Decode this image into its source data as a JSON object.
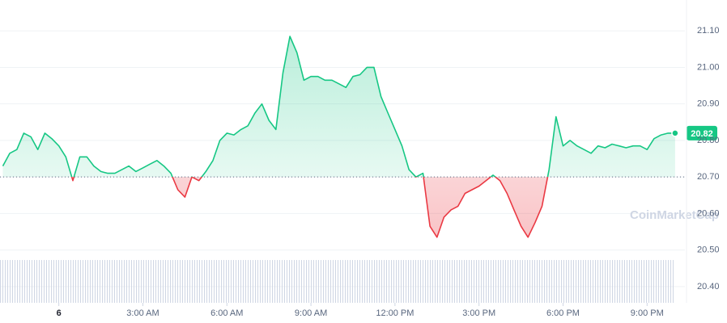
{
  "chart_data": {
    "type": "line",
    "watermark": "CoinMarketCap",
    "current_price": 20.82,
    "baseline": 20.7,
    "up_color": "#16c784",
    "down_color": "#ea3943",
    "grid": true,
    "xlim": [
      -2.1,
      22.35
    ],
    "xticks": [
      {
        "value": 0,
        "label": "6"
      },
      {
        "value": 3,
        "label": "3:00 AM"
      },
      {
        "value": 6,
        "label": "6:00 AM"
      },
      {
        "value": 9,
        "label": "9:00 AM"
      },
      {
        "value": 12,
        "label": "12:00 PM"
      },
      {
        "value": 15,
        "label": "3:00 PM"
      },
      {
        "value": 18,
        "label": "6:00 PM"
      },
      {
        "value": 21,
        "label": "9:00 PM"
      }
    ],
    "ylim": [
      20.36,
      21.18
    ],
    "yticks": [
      {
        "value": 20.4,
        "label": "20.40"
      },
      {
        "value": 20.5,
        "label": "20.50"
      },
      {
        "value": 20.6,
        "label": "20.60"
      },
      {
        "value": 20.7,
        "label": "20.70"
      },
      {
        "value": 20.8,
        "label": "20.80"
      },
      {
        "value": 20.9,
        "label": "20.90"
      },
      {
        "value": 21.0,
        "label": "21.00"
      },
      {
        "value": 21.1,
        "label": "21.10"
      }
    ],
    "x": [
      -2,
      -1.75,
      -1.5,
      -1.25,
      -1,
      -0.75,
      -0.5,
      -0.25,
      0,
      0.25,
      0.5,
      0.75,
      1,
      1.25,
      1.5,
      1.75,
      2,
      2.25,
      2.5,
      2.75,
      3,
      3.25,
      3.5,
      3.75,
      4,
      4.25,
      4.5,
      4.75,
      5,
      5.25,
      5.5,
      5.75,
      6,
      6.25,
      6.5,
      6.75,
      7,
      7.25,
      7.5,
      7.75,
      8,
      8.25,
      8.5,
      8.75,
      9,
      9.25,
      9.5,
      9.75,
      10,
      10.25,
      10.5,
      10.75,
      11,
      11.25,
      11.5,
      11.75,
      12,
      12.25,
      12.5,
      12.75,
      13,
      13.25,
      13.5,
      13.75,
      14,
      14.25,
      14.5,
      14.75,
      15,
      15.25,
      15.5,
      15.75,
      16,
      16.25,
      16.5,
      16.75,
      17,
      17.25,
      17.5,
      17.75,
      18,
      18.25,
      18.5,
      18.75,
      19,
      19.25,
      19.5,
      19.75,
      20,
      20.25,
      20.5,
      20.75,
      21,
      21.25,
      21.5,
      21.75,
      22
    ],
    "values": [
      20.73,
      20.765,
      20.775,
      20.82,
      20.81,
      20.775,
      20.82,
      20.805,
      20.785,
      20.755,
      20.69,
      20.755,
      20.755,
      20.73,
      20.715,
      20.71,
      20.71,
      20.72,
      20.73,
      20.715,
      20.725,
      20.735,
      20.745,
      20.73,
      20.71,
      20.665,
      20.645,
      20.7,
      20.69,
      20.715,
      20.745,
      20.8,
      20.82,
      20.815,
      20.83,
      20.84,
      20.875,
      20.9,
      20.855,
      20.83,
      20.985,
      21.085,
      21.04,
      20.965,
      20.975,
      20.975,
      20.965,
      20.965,
      20.955,
      20.945,
      20.975,
      20.98,
      21.0,
      21.0,
      20.92,
      20.875,
      20.83,
      20.785,
      20.72,
      20.7,
      20.71,
      20.565,
      20.535,
      20.59,
      20.61,
      20.62,
      20.655,
      20.665,
      20.675,
      20.69,
      20.705,
      20.69,
      20.655,
      20.61,
      20.565,
      20.535,
      20.575,
      20.62,
      20.72,
      20.865,
      20.785,
      20.8,
      20.785,
      20.775,
      20.765,
      20.785,
      20.78,
      20.79,
      20.785,
      20.78,
      20.785,
      20.785,
      20.775,
      20.805,
      20.815,
      20.82,
      20.82
    ]
  }
}
